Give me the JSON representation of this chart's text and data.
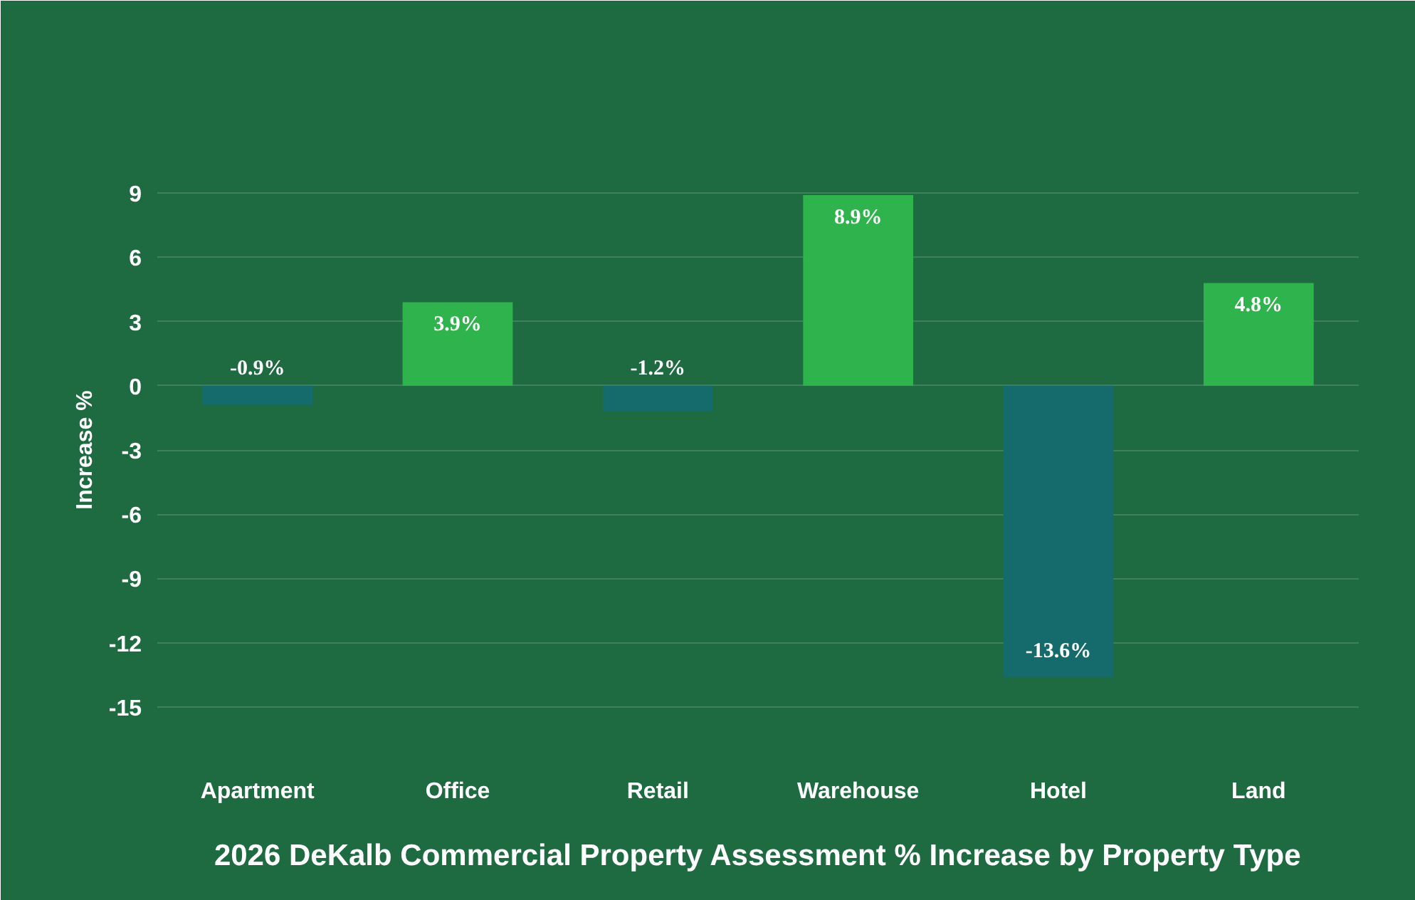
{
  "chart_data": {
    "type": "bar",
    "title": "2026 DeKalb Commercial Property Assessment % Increase by Property Type",
    "ylabel": "Increase %",
    "categories": [
      "Apartment",
      "Office",
      "Retail",
      "Warehouse",
      "Hotel",
      "Land"
    ],
    "values": [
      -0.9,
      3.9,
      -1.2,
      8.9,
      -13.6,
      4.8
    ],
    "colors": [
      "#156b6b",
      "#2fb34c",
      "#156b6b",
      "#2fb34c",
      "#156b6b",
      "#2fb34c"
    ],
    "value_labels": [
      "-0.9%",
      "3.9%",
      "-1.2%",
      "8.9%",
      "-13.6%",
      "4.8%"
    ],
    "ylim": [
      -16,
      10
    ],
    "yticks": [
      -15,
      -12,
      -9,
      -6,
      -3,
      0,
      3,
      6,
      9
    ],
    "grid": "y"
  }
}
